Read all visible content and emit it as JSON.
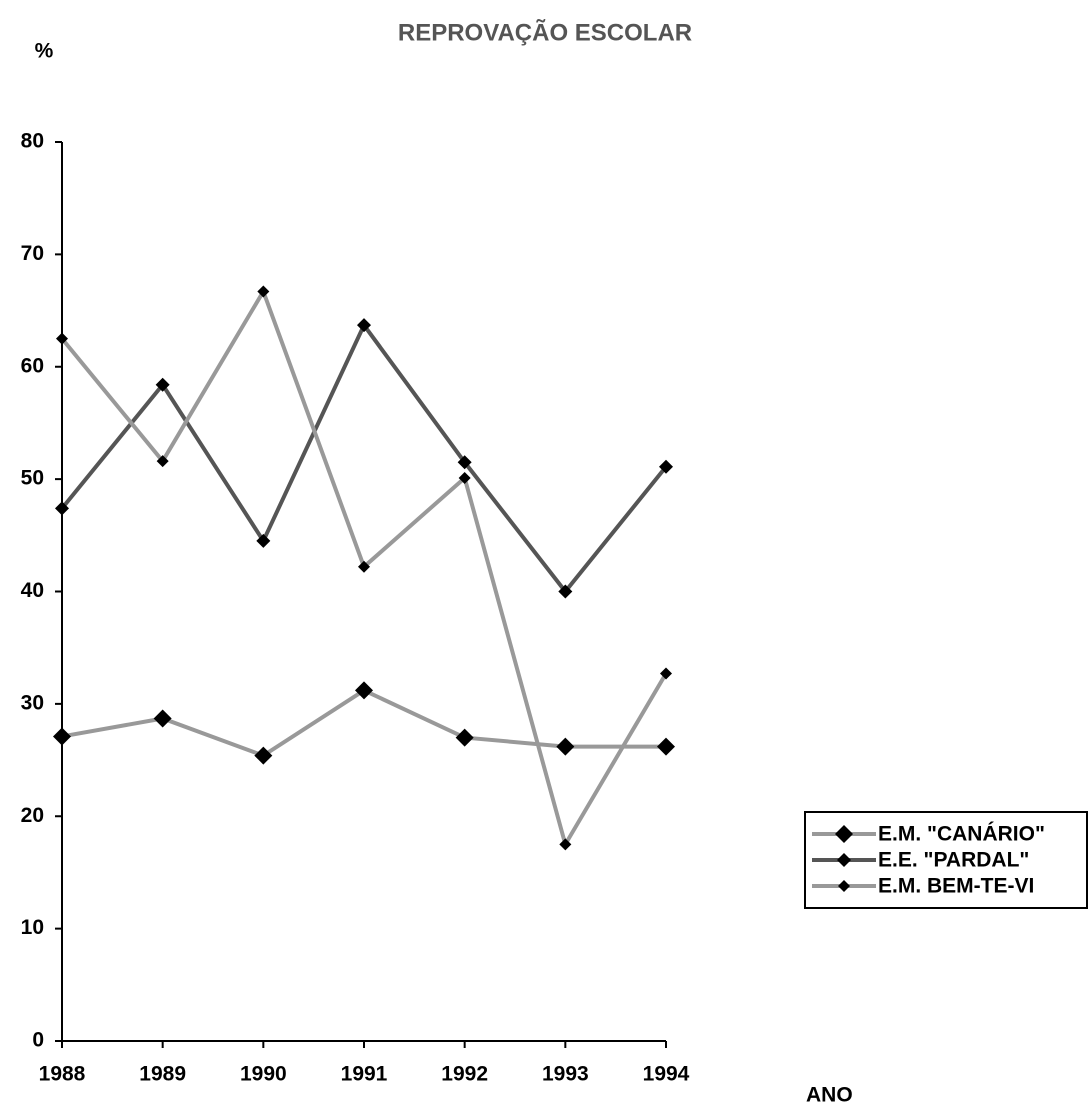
{
  "chart_data": {
    "type": "line",
    "title": "REPROVAÇÃO ESCOLAR",
    "y_label": "%",
    "x_label": "ANO",
    "categories": [
      "1988",
      "1989",
      "1990",
      "1991",
      "1992",
      "1993",
      "1994"
    ],
    "series": [
      {
        "name": "E.M. \"CANÁRIO\"",
        "color": "#999999",
        "values": [
          27.1,
          28.7,
          25.4,
          31.2,
          27.0,
          26.2,
          26.2
        ]
      },
      {
        "name": "E.E. \"PARDAL\"",
        "color": "#555555",
        "values": [
          47.4,
          58.4,
          44.5,
          63.7,
          51.5,
          40.0,
          51.1
        ]
      },
      {
        "name": "E.M. BEM-TE-VI",
        "color": "#999999",
        "values": [
          62.5,
          51.6,
          66.7,
          42.2,
          50.1,
          17.5,
          32.7
        ]
      }
    ],
    "ylim": [
      0,
      80
    ],
    "yticks": [
      0,
      10,
      20,
      30,
      40,
      50,
      60,
      70,
      80
    ],
    "grid": false,
    "legend": "right"
  }
}
